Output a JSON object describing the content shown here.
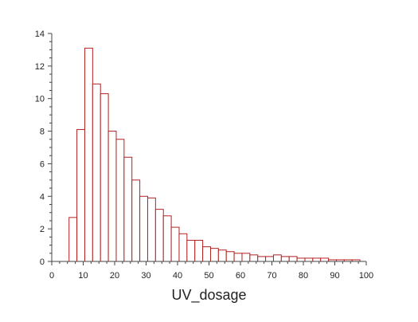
{
  "chart_data": {
    "type": "bar",
    "subtype": "histogram",
    "title": "",
    "xlabel": "UV_dosage",
    "ylabel": "",
    "bin_width": 2.5,
    "bin_starts": [
      5.5,
      8,
      10.5,
      13,
      15.5,
      18,
      20.5,
      23,
      25.5,
      28,
      30.5,
      33,
      35.5,
      38,
      40.5,
      43,
      45.5,
      48,
      50.5,
      53,
      55.5,
      58,
      60.5,
      63,
      65.5,
      68,
      70.5,
      73,
      75.5,
      78,
      80.5,
      83,
      85.5,
      88,
      90.5,
      93,
      95.5
    ],
    "values": [
      2.7,
      8.1,
      13.1,
      10.9,
      10.3,
      8.0,
      7.5,
      6.4,
      5.0,
      4.0,
      3.9,
      3.2,
      2.8,
      2.1,
      1.7,
      1.3,
      1.3,
      0.9,
      0.8,
      0.7,
      0.6,
      0.5,
      0.5,
      0.4,
      0.3,
      0.3,
      0.4,
      0.3,
      0.3,
      0.2,
      0.2,
      0.2,
      0.2,
      0.1,
      0.1,
      0.1,
      0.1
    ],
    "xlim": [
      0,
      100
    ],
    "ylim": [
      0,
      14
    ],
    "xticks": [
      "0",
      "10",
      "20",
      "30",
      "40",
      "50",
      "60",
      "70",
      "80",
      "90",
      "100"
    ],
    "yticks": [
      "0",
      "2",
      "4",
      "6",
      "8",
      "10",
      "12",
      "14"
    ],
    "grid": false,
    "colors": {
      "bar_edge": "#b22222",
      "bar_fill": "#ffffff",
      "axis": "#444444"
    }
  }
}
